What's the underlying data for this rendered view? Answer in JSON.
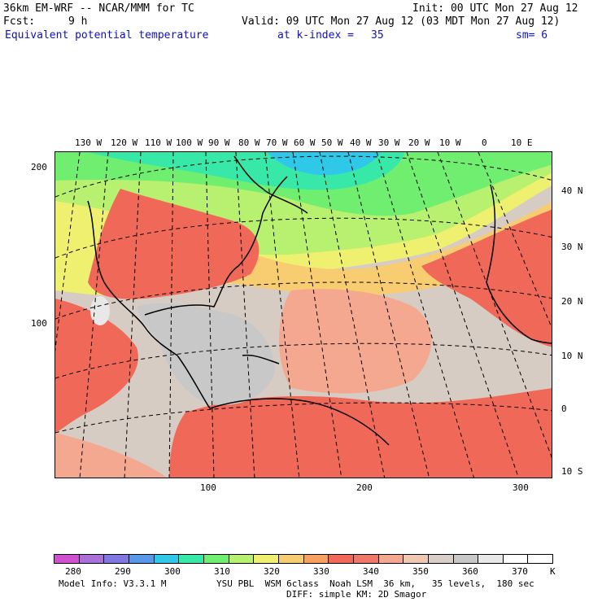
{
  "header": {
    "model": "36km EM-WRF -- NCAR/MMM for TC",
    "init": "Init: 00 UTC Mon 27 Aug 12",
    "fcst_label": "Fcst:",
    "fcst_value": "9 h",
    "valid": "Valid: 09 UTC Mon 27 Aug 12 (03 MDT Mon 27 Aug 12)",
    "field": "Equivalent potential temperature",
    "level": "at k-index =",
    "level_value": "35",
    "smoothing": "sm= 6"
  },
  "map": {
    "lon_labels": [
      "130 W",
      "120 W",
      "110 W",
      "100 W",
      "90 W",
      "80 W",
      "70 W",
      "60 W",
      "50 W",
      "40 W",
      "30 W",
      "20 W",
      "10 W",
      "0",
      "10 E"
    ],
    "lat_labels": [
      "40 N",
      "30 N",
      "20 N",
      "10 N",
      "0",
      "10 S"
    ],
    "y_grid_labels": [
      "200",
      "100"
    ],
    "x_grid_labels": [
      "100",
      "200",
      "300"
    ]
  },
  "legend": {
    "values": [
      "280",
      "290",
      "300",
      "310",
      "320",
      "330",
      "340",
      "350",
      "360",
      "370"
    ],
    "unit": "K",
    "colors": [
      "#d050d0",
      "#a870d8",
      "#8078e0",
      "#5898e8",
      "#30c8e8",
      "#38e8a8",
      "#70ee70",
      "#b8f070",
      "#f0f070",
      "#f8cc70",
      "#f8a060",
      "#f06858",
      "#f07868",
      "#f4a890",
      "#f0c8b0",
      "#d8d0c8",
      "#c8c8c8",
      "#e8e8e8",
      "#ffffff",
      "#ffffff"
    ]
  },
  "footer": {
    "line1_left": "Model Info: V3.3.1 M",
    "line1_right": "YSU PBL  WSM 6class  Noah LSM  36 km,   35 levels,  180 sec",
    "line2": "DIFF: simple KM: 2D Smagor"
  }
}
